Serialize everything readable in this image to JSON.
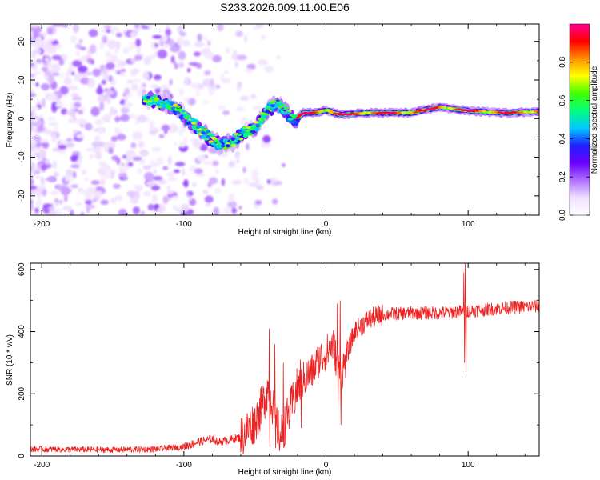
{
  "figure": {
    "title": "S233.2026.009.11.00.E06"
  },
  "chart_data": [
    {
      "type": "heatmap",
      "name": "spectrogram",
      "xlabel": "Height of straight line (km)",
      "ylabel": "Frequency (Hz)",
      "xlim": [
        -208,
        150
      ],
      "ylim": [
        -25,
        24.5
      ],
      "x_ticks": [
        -200,
        -100,
        0,
        100
      ],
      "y_ticks": [
        -20,
        -10,
        0,
        10,
        20
      ],
      "grid": false,
      "ridge_track": [
        {
          "x": -125,
          "f": 5.0
        },
        {
          "x": -115,
          "f": 4.0
        },
        {
          "x": -105,
          "f": 2.5
        },
        {
          "x": -95,
          "f": -1.0
        },
        {
          "x": -88,
          "f": -3.0
        },
        {
          "x": -82,
          "f": -5.0
        },
        {
          "x": -74,
          "f": -7.0
        },
        {
          "x": -66,
          "f": -6.0
        },
        {
          "x": -58,
          "f": -3.5
        },
        {
          "x": -50,
          "f": -2.5
        },
        {
          "x": -42,
          "f": 2.0
        },
        {
          "x": -34,
          "f": 4.0
        },
        {
          "x": -28,
          "f": 1.5
        },
        {
          "x": -22,
          "f": -0.5
        },
        {
          "x": -16,
          "f": 1.5
        },
        {
          "x": -8,
          "f": 1.5
        },
        {
          "x": 0,
          "f": 2.2
        },
        {
          "x": 10,
          "f": 1.0
        },
        {
          "x": 30,
          "f": 1.5
        },
        {
          "x": 60,
          "f": 1.5
        },
        {
          "x": 80,
          "f": 3.0
        },
        {
          "x": 100,
          "f": 2.0
        },
        {
          "x": 125,
          "f": 1.5
        },
        {
          "x": 150,
          "f": 1.8
        }
      ]
    },
    {
      "type": "colorbar",
      "name": "colorbar",
      "label": "Normalized spectral amplitude",
      "range": [
        0,
        1
      ],
      "ticks": [
        "0.0",
        "0.2",
        "0.4",
        "0.6",
        "0.8"
      ],
      "colormap": [
        "#ffffff",
        "#f0e0ff",
        "#b070ff",
        "#6a00ff",
        "#2020ff",
        "#00c8ff",
        "#00ff80",
        "#40ff00",
        "#ffff00",
        "#ff9000",
        "#ff0000",
        "#ff0090"
      ]
    },
    {
      "type": "line",
      "name": "snr",
      "xlabel": "Height of straight line (km)",
      "ylabel": "SNR (10 * v/v)",
      "xlim": [
        -208,
        150
      ],
      "ylim": [
        0,
        620
      ],
      "x_ticks": [
        -200,
        -100,
        0,
        100
      ],
      "y_ticks": [
        0,
        200,
        400,
        600
      ],
      "color": "#ee2020",
      "grid": false,
      "anchors": [
        {
          "x": -208,
          "y": 22
        },
        {
          "x": -150,
          "y": 20
        },
        {
          "x": -120,
          "y": 22
        },
        {
          "x": -100,
          "y": 30
        },
        {
          "x": -90,
          "y": 45
        },
        {
          "x": -80,
          "y": 55
        },
        {
          "x": -75,
          "y": 45
        },
        {
          "x": -60,
          "y": 60
        },
        {
          "x": -50,
          "y": 110
        },
        {
          "x": -45,
          "y": 160
        },
        {
          "x": -40,
          "y": 230
        },
        {
          "x": -36,
          "y": 120
        },
        {
          "x": -32,
          "y": 60
        },
        {
          "x": -25,
          "y": 150
        },
        {
          "x": -20,
          "y": 220
        },
        {
          "x": -15,
          "y": 250
        },
        {
          "x": -10,
          "y": 270
        },
        {
          "x": -5,
          "y": 310
        },
        {
          "x": 0,
          "y": 330
        },
        {
          "x": 5,
          "y": 360
        },
        {
          "x": 10,
          "y": 250
        },
        {
          "x": 15,
          "y": 330
        },
        {
          "x": 20,
          "y": 400
        },
        {
          "x": 30,
          "y": 440
        },
        {
          "x": 40,
          "y": 455
        },
        {
          "x": 60,
          "y": 460
        },
        {
          "x": 80,
          "y": 460
        },
        {
          "x": 95,
          "y": 465
        },
        {
          "x": 110,
          "y": 470
        },
        {
          "x": 130,
          "y": 478
        },
        {
          "x": 150,
          "y": 482
        }
      ],
      "spikes": [
        {
          "x": -40,
          "low": 30,
          "high": 410
        },
        {
          "x": -36,
          "low": 25,
          "high": 360
        },
        {
          "x": -30,
          "low": 40,
          "high": 300
        },
        {
          "x": -18,
          "low": 90,
          "high": 310
        },
        {
          "x": 8,
          "low": 170,
          "high": 490
        },
        {
          "x": 10,
          "low": 100,
          "high": 500
        },
        {
          "x": 98,
          "low": 270,
          "high": 620
        },
        {
          "x": 97,
          "low": 300,
          "high": 590
        }
      ]
    }
  ]
}
